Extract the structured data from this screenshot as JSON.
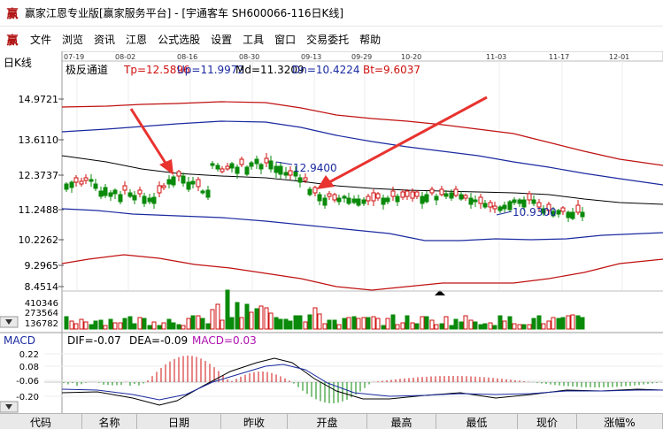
{
  "window": {
    "title": "赢家江恩专业版[赢家服务平台] - [宇通客车  SH600066-116日K线]",
    "app_icon": "yingjia-logo-icon"
  },
  "menu": {
    "items": [
      "文件",
      "浏览",
      "资讯",
      "江恩",
      "公式选股",
      "设置",
      "工具",
      "窗口",
      "交易委托",
      "帮助"
    ]
  },
  "chart": {
    "panel_label": "日K线",
    "indicator_name": "极反通道",
    "params": [
      {
        "label": "Tp=12.5896",
        "color": "#d01010"
      },
      {
        "label": "Up=11.9972",
        "color": "#1a2aa0"
      },
      {
        "label": "Md=11.3209",
        "color": "#000000"
      },
      {
        "label": "Dn=10.4224",
        "color": "#1a2aa0"
      },
      {
        "label": "Bt=9.6037",
        "color": "#d01010"
      }
    ],
    "date_labels": [
      "07-19",
      "08-02",
      "08-16",
      "08-30",
      "09-13",
      "09-29",
      "10-20",
      "11-03",
      "11-17",
      "12-01"
    ],
    "price_ticks": [
      "14.9721",
      "13.6110",
      "12.3737",
      "11.2488",
      "10.2262",
      "9.2965",
      "8.4514"
    ],
    "volume_ticks": [
      "410346",
      "273564",
      "136782"
    ],
    "high_annotation": "12.9400",
    "low_annotation": "10.9300",
    "colors": {
      "up": "#d01010",
      "down": "#0a8a0a",
      "upper_band": "#c01010",
      "mid_band": "#1a2aa0",
      "center": "#000000",
      "arrow": "#e8332f"
    }
  },
  "macd": {
    "panel_label": "MACD",
    "dif_label": "DIF=-0.07",
    "dea_label": "DEA=-0.09",
    "macd_label": "MACD=0.03",
    "ticks": [
      "0.22",
      "0.08",
      "-0.06",
      "-0.20"
    ]
  },
  "columns": [
    "代码",
    "名称",
    "日期",
    "昨收",
    "开盘",
    "最高",
    "最低",
    "现价",
    "涨幅%"
  ]
}
